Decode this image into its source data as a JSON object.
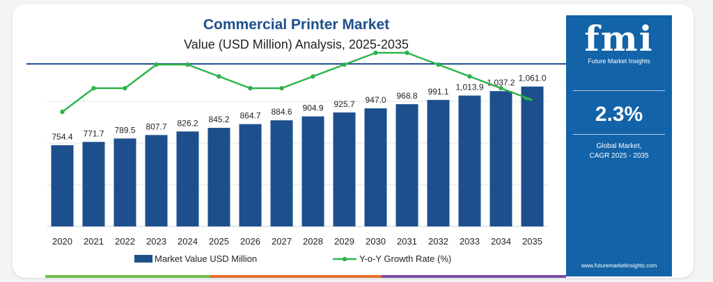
{
  "chart_data": {
    "type": "bar",
    "title": "Commercial Printer Market",
    "subtitle": "Value (USD Million) Analysis, 2025-2035",
    "categories": [
      "2020",
      "2021",
      "2022",
      "2023",
      "2024",
      "2025",
      "2026",
      "2027",
      "2028",
      "2029",
      "2030",
      "2031",
      "2032",
      "2033",
      "2034",
      "2035"
    ],
    "series": [
      {
        "name": "Market Value USD Million",
        "type": "bar",
        "color": "#1d4f8c",
        "values": [
          754.4,
          771.7,
          789.5,
          807.7,
          826.2,
          845.2,
          864.7,
          884.6,
          904.9,
          925.7,
          947.0,
          968.8,
          991.1,
          1013.9,
          1037.2,
          1061.0
        ],
        "labels": [
          "754.4",
          "771.7",
          "789.5",
          "807.7",
          "826.2",
          "845.2",
          "864.7",
          "884.6",
          "904.9",
          "925.7",
          "947.0",
          "968.8",
          "991.1",
          "1,013.9",
          "1,037.2",
          "1,061.0"
        ]
      },
      {
        "name": "Y-o-Y Growth Rate (%)",
        "type": "line",
        "color": "#2db34a",
        "values": [
          2.2,
          2.3,
          2.3,
          2.4,
          2.4,
          2.35,
          2.3,
          2.3,
          2.35,
          2.4,
          2.45,
          2.45,
          2.4,
          2.35,
          2.3,
          2.25
        ]
      }
    ],
    "grid": true,
    "legend_position": "bottom"
  },
  "sidebar": {
    "logo": "fmi",
    "logo_subtitle": "Future Market Insights",
    "cagr_value": "2.3%",
    "cagr_label_line1": "Global Market,",
    "cagr_label_line2": "CAGR 2025 - 2035",
    "website": "www.futuremarketinsights.com"
  },
  "colors": {
    "bar": "#1d4f8c",
    "line": "#2db34a",
    "sidebar": "#1263a8",
    "strip": [
      "#6cbf45",
      "#e86c2c",
      "#7b4aa0"
    ]
  }
}
